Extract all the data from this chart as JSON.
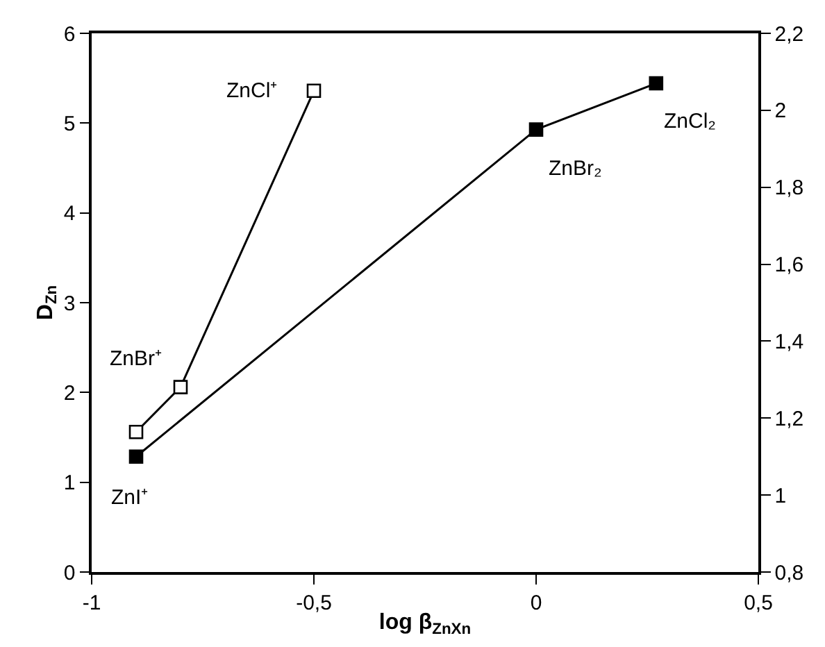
{
  "chart_data": {
    "type": "line",
    "xlabel": "log β$_{ZnXn}$",
    "ylabel": "D$_{Zn}$",
    "series": [
      {
        "color": "#000000",
        "colors": [
          "#ffffff",
          "#ffffff",
          "#ffffff"
        ],
        "x": [
          -0.9,
          -0.8,
          -0.5
        ],
        "values": [
          1.56,
          2.06,
          5.36
        ]
      },
      {
        "color": "#000000",
        "axis": "y2",
        "x": [
          -0.9,
          0,
          0.27
        ],
        "values": [
          1.1,
          1.95,
          2.07
        ]
      }
    ],
    "xlim": [
      -1,
      0.5
    ],
    "xticks": [
      {
        "value": -1,
        "label": "-1"
      },
      {
        "value": -0.5,
        "label": "-0,5"
      },
      0,
      {
        "value": 0.5,
        "label": "0,5"
      }
    ],
    "ylim": [
      0,
      6
    ],
    "yticks": [
      0,
      1,
      2,
      3,
      4,
      5,
      6
    ],
    "y2lim": [
      0.8,
      2.2
    ],
    "y2ticks": [
      {
        "value": 0.8,
        "label": "0,8"
      },
      1,
      {
        "value": 1.2,
        "label": "1,2"
      },
      {
        "value": 1.4,
        "label": "1,4"
      },
      {
        "value": 1.6,
        "label": "1,6"
      },
      {
        "value": 1.8,
        "label": "1,8"
      },
      2,
      {
        "value": 2.2,
        "label": "2,2"
      }
    ],
    "annotations": [
      {
        "text": "ZnCl⁺",
        "x": -0.5,
        "y": 5.36
      },
      {
        "text": "ZnBr⁺",
        "x": -0.8,
        "y": 2.06
      },
      {
        "text": "ZnI⁺",
        "x": -0.9,
        "y": 1.29
      },
      {
        "text": "ZnBr₂",
        "x": 0,
        "y": 4.92
      },
      {
        "text": "ZnCl₂",
        "x": 0.27,
        "y": 5.45
      }
    ],
    "marker": "square",
    "line_style": "solid"
  }
}
